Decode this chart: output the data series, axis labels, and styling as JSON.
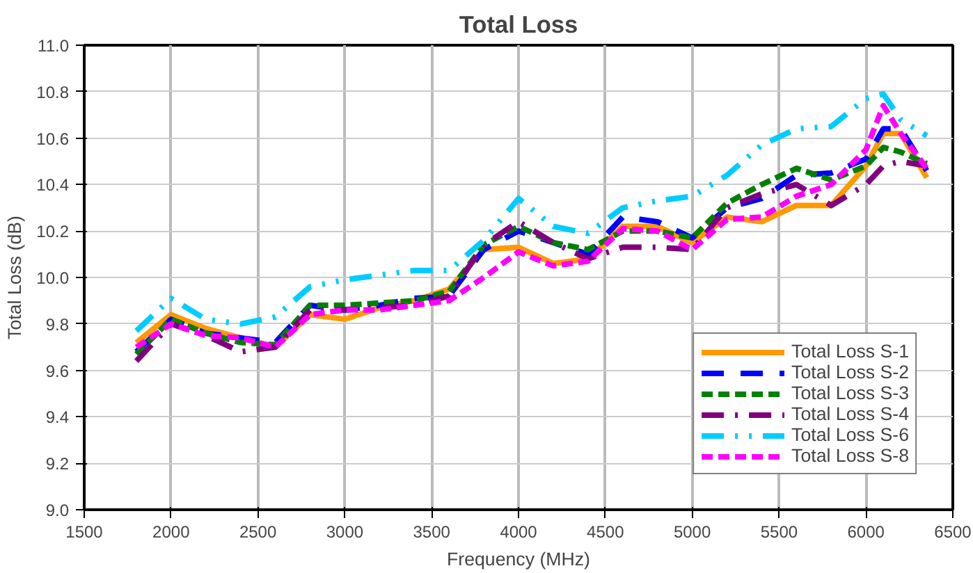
{
  "chart_data": {
    "type": "line",
    "title": "Total Loss",
    "xlabel": "Frequency (MHz)",
    "ylabel": "Total Loss (dB)",
    "x": [
      1800,
      2000,
      2200,
      2400,
      2600,
      2800,
      3000,
      3200,
      3400,
      3600,
      3800,
      4000,
      4200,
      4400,
      4600,
      4800,
      5000,
      5200,
      5400,
      5600,
      5800,
      6000,
      6100,
      6200,
      6350
    ],
    "series": [
      {
        "name": "Total Loss S-1",
        "color": "#ff9900",
        "line_style": "solid",
        "values": [
          9.72,
          9.84,
          9.78,
          9.74,
          9.7,
          9.84,
          9.82,
          9.87,
          9.9,
          9.95,
          10.12,
          10.13,
          10.06,
          10.08,
          10.22,
          10.22,
          10.15,
          10.26,
          10.24,
          10.31,
          10.31,
          10.48,
          10.62,
          10.62,
          10.43
        ]
      },
      {
        "name": "Total Loss S-2",
        "color": "#0000ff",
        "line_style": "longdash",
        "values": [
          9.68,
          9.82,
          9.76,
          9.74,
          9.72,
          9.88,
          9.86,
          9.88,
          9.91,
          9.92,
          10.12,
          10.2,
          10.15,
          10.1,
          10.26,
          10.24,
          10.17,
          10.3,
          10.34,
          10.44,
          10.45,
          10.51,
          10.64,
          10.64,
          10.46
        ]
      },
      {
        "name": "Total Loss S-3",
        "color": "#008000",
        "line_style": "dashed",
        "values": [
          9.67,
          9.82,
          9.76,
          9.72,
          9.71,
          9.88,
          9.88,
          9.89,
          9.9,
          9.94,
          10.14,
          10.22,
          10.15,
          10.12,
          10.2,
          10.2,
          10.17,
          10.32,
          10.4,
          10.47,
          10.42,
          10.48,
          10.56,
          10.54,
          10.49
        ]
      },
      {
        "name": "Total Loss S-4",
        "color": "#800080",
        "line_style": "dashdot",
        "values": [
          9.64,
          9.8,
          9.75,
          9.68,
          9.7,
          9.86,
          9.86,
          9.87,
          9.88,
          9.92,
          10.14,
          10.24,
          10.15,
          10.08,
          10.13,
          10.13,
          10.12,
          10.3,
          10.36,
          10.4,
          10.31,
          10.4,
          10.48,
          10.5,
          10.48
        ]
      },
      {
        "name": "Total Loss S-6",
        "color": "#00ccff",
        "line_style": "dashdotdot",
        "values": [
          9.77,
          9.91,
          9.82,
          9.8,
          9.83,
          9.96,
          9.99,
          10.01,
          10.03,
          10.03,
          10.16,
          10.34,
          10.22,
          10.19,
          10.3,
          10.33,
          10.35,
          10.44,
          10.57,
          10.64,
          10.65,
          10.77,
          10.79,
          10.68,
          10.61
        ]
      },
      {
        "name": "Total Loss S-8",
        "color": "#ff00ff",
        "line_style": "dashed",
        "values": [
          9.7,
          9.8,
          9.75,
          9.74,
          9.7,
          9.84,
          9.86,
          9.86,
          9.88,
          9.9,
          10.0,
          10.11,
          10.05,
          10.07,
          10.21,
          10.2,
          10.12,
          10.25,
          10.26,
          10.35,
          10.4,
          10.55,
          10.74,
          10.62,
          10.47
        ]
      }
    ],
    "xlim": [
      1500,
      6500
    ],
    "xticks": [
      1500,
      2000,
      2500,
      3000,
      3500,
      4000,
      4500,
      5000,
      5500,
      6000,
      6500
    ],
    "ylim": [
      9.0,
      11.0
    ],
    "yticks": [
      {
        "value": 9.0,
        "label": "9.0"
      },
      9.2,
      9.4,
      9.6,
      9.8,
      {
        "value": 10.0,
        "label": "10.0"
      },
      10.2,
      10.4,
      10.6,
      10.8,
      {
        "value": 11.0,
        "label": "11.0"
      }
    ],
    "grid": true,
    "legend": "bottom right"
  }
}
